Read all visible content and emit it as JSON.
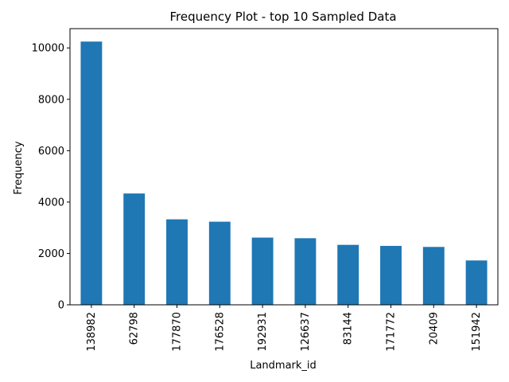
{
  "chart_data": {
    "type": "bar",
    "title": "Frequency Plot - top 10 Sampled Data",
    "xlabel": "Landmark_id",
    "ylabel": "Frequency",
    "categories": [
      "138982",
      "62798",
      "177870",
      "176528",
      "192931",
      "126637",
      "83144",
      "171772",
      "20409",
      "151942"
    ],
    "values": [
      10247,
      4333,
      3327,
      3235,
      2616,
      2592,
      2334,
      2293,
      2253,
      1726
    ],
    "ylim": [
      0,
      10750
    ],
    "yticks": [
      0,
      2000,
      4000,
      6000,
      8000,
      10000
    ],
    "grid": false,
    "legend": "none",
    "bar_color": "#1f77b4"
  }
}
